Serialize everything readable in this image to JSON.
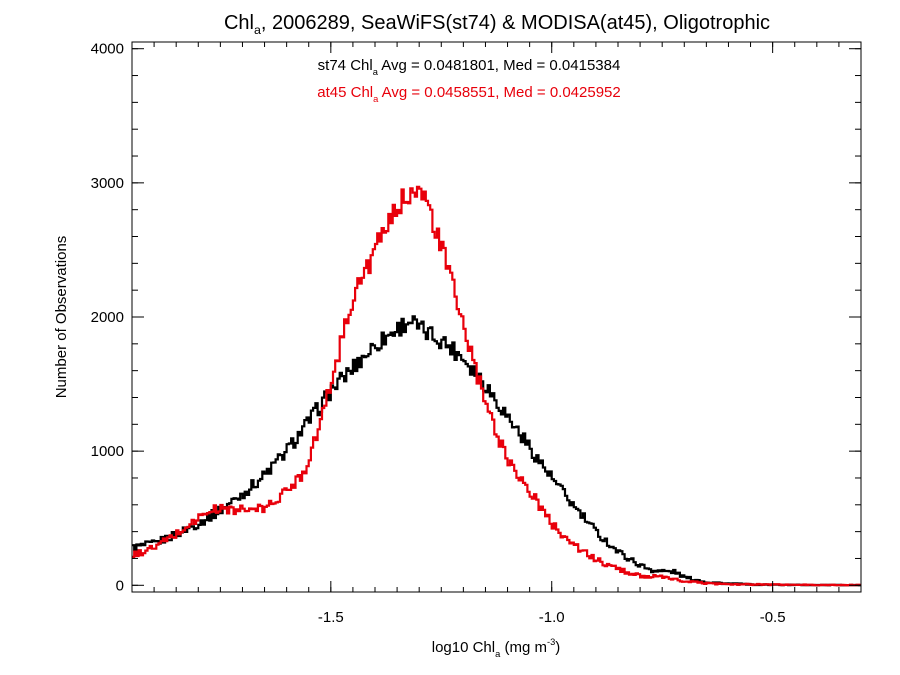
{
  "chart_data": {
    "type": "line",
    "title": {
      "parts": [
        {
          "text": "Chl",
          "role": "base"
        },
        {
          "text": "a",
          "role": "sub"
        },
        {
          "text": ", 2006289, SeaWiFS(st74) & MODISA(at45), Oligotrophic",
          "role": "base"
        }
      ]
    },
    "xlabel": {
      "parts": [
        {
          "text": "log10 Chl",
          "role": "base"
        },
        {
          "text": "a",
          "role": "sub"
        },
        {
          "text": " (mg m",
          "role": "base"
        },
        {
          "text": "-3",
          "role": "sup"
        },
        {
          "text": ")",
          "role": "base"
        }
      ]
    },
    "ylabel": "Number of Observations",
    "xlim": [
      -1.95,
      -0.3
    ],
    "ylim": [
      -50,
      4050
    ],
    "x_ticks": [
      -1.5,
      -1.0,
      -0.5
    ],
    "x_tick_labels": [
      "-1.5",
      "-1.0",
      "-0.5"
    ],
    "y_ticks": [
      0,
      1000,
      2000,
      3000,
      4000
    ],
    "y_tick_labels": [
      "0",
      "1000",
      "2000",
      "3000",
      "4000"
    ],
    "grid": false,
    "bin_width": 0.005,
    "annotations": [
      {
        "series": "st74",
        "color": "#000000",
        "parts": [
          {
            "text": "st74 Chl",
            "role": "base"
          },
          {
            "text": "a",
            "role": "sub"
          },
          {
            "text": " Avg = 0.0481801, Med = 0.0415384",
            "role": "base"
          }
        ]
      },
      {
        "series": "at45",
        "color": "#e8000b",
        "parts": [
          {
            "text": "at45 Chl",
            "role": "base"
          },
          {
            "text": "a",
            "role": "sub"
          },
          {
            "text": " Avg = 0.0458551, Med = 0.0425952",
            "role": "base"
          }
        ]
      }
    ],
    "series": [
      {
        "color": "#000000",
        "points": [
          [
            -1.95,
            280
          ],
          [
            -1.9,
            310
          ],
          [
            -1.85,
            380
          ],
          [
            -1.8,
            460
          ],
          [
            -1.75,
            560
          ],
          [
            -1.7,
            680
          ],
          [
            -1.65,
            820
          ],
          [
            -1.6,
            1000
          ],
          [
            -1.55,
            1220
          ],
          [
            -1.5,
            1450
          ],
          [
            -1.45,
            1620
          ],
          [
            -1.4,
            1790
          ],
          [
            -1.35,
            1910
          ],
          [
            -1.32,
            1980
          ],
          [
            -1.3,
            1910
          ],
          [
            -1.25,
            1830
          ],
          [
            -1.2,
            1700
          ],
          [
            -1.15,
            1500
          ],
          [
            -1.1,
            1260
          ],
          [
            -1.05,
            1030
          ],
          [
            -1.0,
            800
          ],
          [
            -0.95,
            590
          ],
          [
            -0.9,
            400
          ],
          [
            -0.85,
            250
          ],
          [
            -0.8,
            150
          ],
          [
            -0.77,
            110
          ],
          [
            -0.72,
            100
          ],
          [
            -0.7,
            60
          ],
          [
            -0.65,
            25
          ],
          [
            -0.6,
            12
          ],
          [
            -0.55,
            6
          ],
          [
            -0.5,
            4
          ],
          [
            -0.4,
            2
          ],
          [
            -0.3,
            1
          ]
        ]
      },
      {
        "color": "#e8000b",
        "points": [
          [
            -1.95,
            220
          ],
          [
            -1.9,
            280
          ],
          [
            -1.85,
            380
          ],
          [
            -1.8,
            500
          ],
          [
            -1.77,
            560
          ],
          [
            -1.75,
            570
          ],
          [
            -1.7,
            560
          ],
          [
            -1.65,
            570
          ],
          [
            -1.6,
            700
          ],
          [
            -1.56,
            850
          ],
          [
            -1.52,
            1250
          ],
          [
            -1.5,
            1500
          ],
          [
            -1.47,
            1900
          ],
          [
            -1.45,
            2150
          ],
          [
            -1.42,
            2350
          ],
          [
            -1.4,
            2500
          ],
          [
            -1.37,
            2680
          ],
          [
            -1.35,
            2810
          ],
          [
            -1.33,
            2900
          ],
          [
            -1.31,
            2990
          ],
          [
            -1.3,
            2950
          ],
          [
            -1.28,
            2820
          ],
          [
            -1.25,
            2520
          ],
          [
            -1.22,
            2200
          ],
          [
            -1.2,
            1930
          ],
          [
            -1.18,
            1700
          ],
          [
            -1.15,
            1350
          ],
          [
            -1.12,
            1100
          ],
          [
            -1.1,
            950
          ],
          [
            -1.05,
            700
          ],
          [
            -1.0,
            460
          ],
          [
            -0.95,
            300
          ],
          [
            -0.9,
            190
          ],
          [
            -0.85,
            120
          ],
          [
            -0.8,
            70
          ],
          [
            -0.75,
            60
          ],
          [
            -0.7,
            30
          ],
          [
            -0.65,
            15
          ],
          [
            -0.6,
            8
          ],
          [
            -0.5,
            5
          ],
          [
            -0.4,
            3
          ],
          [
            -0.3,
            2
          ]
        ]
      }
    ]
  }
}
